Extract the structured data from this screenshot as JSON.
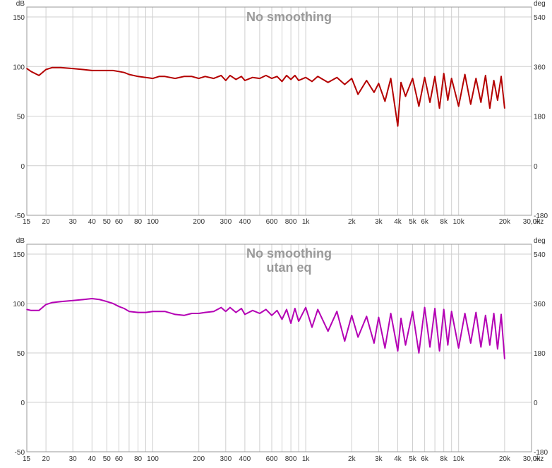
{
  "charts": [
    {
      "title": "No smoothing",
      "subtitle": "",
      "color": "#b40000",
      "left_unit": "dB",
      "right_unit": "deg",
      "freq_unit": "Hz",
      "x_tick_labels": [
        "15",
        "20",
        "30",
        "40",
        "50",
        "60",
        "80",
        "100",
        "200",
        "300",
        "400",
        "600",
        "800",
        "1k",
        "2k",
        "3k",
        "4k",
        "5k",
        "6k",
        "8k",
        "10k",
        "20k",
        "30,0k"
      ],
      "left_tick_labels": [
        "150",
        "100",
        "50",
        "0",
        "-50"
      ],
      "right_tick_labels": [
        "540",
        "360",
        "180",
        "0",
        "-180"
      ]
    },
    {
      "title": "No smoothing",
      "subtitle": "utan eq",
      "color": "#b400b4",
      "left_unit": "dB",
      "right_unit": "deg",
      "freq_unit": "Hz",
      "x_tick_labels": [
        "15",
        "20",
        "30",
        "40",
        "50",
        "60",
        "80",
        "100",
        "200",
        "300",
        "400",
        "600",
        "800",
        "1k",
        "2k",
        "3k",
        "4k",
        "5k",
        "6k",
        "8k",
        "10k",
        "20k",
        "30,0k"
      ],
      "left_tick_labels": [
        "150",
        "100",
        "50",
        "0",
        "-50"
      ],
      "right_tick_labels": [
        "540",
        "360",
        "180",
        "0",
        "-180"
      ]
    }
  ],
  "chart_data": [
    {
      "type": "line",
      "title": "No smoothing",
      "xlabel": "Hz",
      "ylabel": "dB",
      "y2label": "deg",
      "x_scale": "log",
      "xlim": [
        15,
        30000
      ],
      "ylim": [
        -50,
        160
      ],
      "y2lim": [
        -180,
        576
      ],
      "y_ticks": [
        150,
        100,
        50,
        0,
        -50
      ],
      "y2_ticks": [
        540,
        360,
        180,
        0,
        -180
      ],
      "x_ticks": [
        15,
        20,
        30,
        40,
        50,
        60,
        80,
        100,
        200,
        300,
        400,
        600,
        800,
        1000,
        2000,
        3000,
        4000,
        5000,
        6000,
        8000,
        10000,
        20000,
        30000
      ],
      "grid": true,
      "series": [
        {
          "color": "#b40000",
          "x": [
            15,
            16,
            18,
            20,
            22,
            25,
            30,
            35,
            40,
            45,
            50,
            55,
            60,
            65,
            70,
            80,
            90,
            100,
            110,
            120,
            140,
            160,
            180,
            200,
            220,
            250,
            280,
            300,
            320,
            350,
            380,
            400,
            450,
            500,
            550,
            600,
            650,
            700,
            750,
            800,
            850,
            900,
            1000,
            1100,
            1200,
            1400,
            1600,
            1800,
            2000,
            2200,
            2500,
            2800,
            3000,
            3300,
            3600,
            4000,
            4200,
            4500,
            5000,
            5500,
            6000,
            6500,
            7000,
            7500,
            8000,
            8500,
            9000,
            10000,
            11000,
            12000,
            13000,
            14000,
            15000,
            16000,
            17000,
            18000,
            19000,
            20000
          ],
          "y": [
            98,
            95,
            91,
            97,
            99,
            99,
            98,
            97,
            96,
            96,
            96,
            96,
            95,
            94,
            92,
            90,
            89,
            88,
            90,
            90,
            88,
            90,
            90,
            88,
            90,
            88,
            91,
            86,
            91,
            87,
            90,
            86,
            89,
            88,
            91,
            88,
            90,
            85,
            91,
            87,
            91,
            86,
            89,
            85,
            90,
            84,
            89,
            82,
            88,
            72,
            86,
            74,
            83,
            65,
            88,
            40,
            84,
            70,
            88,
            60,
            89,
            64,
            90,
            58,
            93,
            66,
            88,
            60,
            92,
            62,
            88,
            64,
            91,
            58,
            86,
            66,
            90,
            58
          ]
        }
      ]
    },
    {
      "type": "line",
      "title": "No smoothing",
      "subtitle": "utan eq",
      "xlabel": "Hz",
      "ylabel": "dB",
      "y2label": "deg",
      "x_scale": "log",
      "xlim": [
        15,
        30000
      ],
      "ylim": [
        -50,
        160
      ],
      "y2lim": [
        -180,
        576
      ],
      "y_ticks": [
        150,
        100,
        50,
        0,
        -50
      ],
      "y2_ticks": [
        540,
        360,
        180,
        0,
        -180
      ],
      "x_ticks": [
        15,
        20,
        30,
        40,
        50,
        60,
        80,
        100,
        200,
        300,
        400,
        600,
        800,
        1000,
        2000,
        3000,
        4000,
        5000,
        6000,
        8000,
        10000,
        20000,
        30000
      ],
      "grid": true,
      "series": [
        {
          "color": "#b400b4",
          "x": [
            15,
            16,
            18,
            20,
            22,
            25,
            30,
            35,
            40,
            45,
            50,
            55,
            60,
            65,
            70,
            80,
            90,
            100,
            110,
            120,
            140,
            160,
            180,
            200,
            220,
            250,
            280,
            300,
            320,
            350,
            380,
            400,
            450,
            500,
            550,
            600,
            650,
            700,
            750,
            800,
            850,
            900,
            1000,
            1100,
            1200,
            1400,
            1600,
            1800,
            2000,
            2200,
            2500,
            2800,
            3000,
            3300,
            3600,
            4000,
            4200,
            4500,
            5000,
            5500,
            6000,
            6500,
            7000,
            7500,
            8000,
            8500,
            9000,
            10000,
            11000,
            12000,
            13000,
            14000,
            15000,
            16000,
            17000,
            18000,
            19000,
            20000
          ],
          "y": [
            94,
            93,
            93,
            99,
            101,
            102,
            103,
            104,
            105,
            104,
            102,
            100,
            97,
            95,
            92,
            91,
            91,
            92,
            92,
            92,
            89,
            88,
            90,
            90,
            91,
            92,
            96,
            92,
            96,
            91,
            95,
            89,
            93,
            90,
            94,
            88,
            93,
            84,
            94,
            80,
            95,
            82,
            96,
            76,
            94,
            72,
            92,
            62,
            88,
            66,
            87,
            60,
            86,
            55,
            90,
            52,
            85,
            58,
            92,
            50,
            96,
            56,
            95,
            52,
            94,
            58,
            92,
            55,
            90,
            60,
            91,
            56,
            88,
            58,
            90,
            54,
            89,
            44
          ]
        }
      ]
    }
  ]
}
